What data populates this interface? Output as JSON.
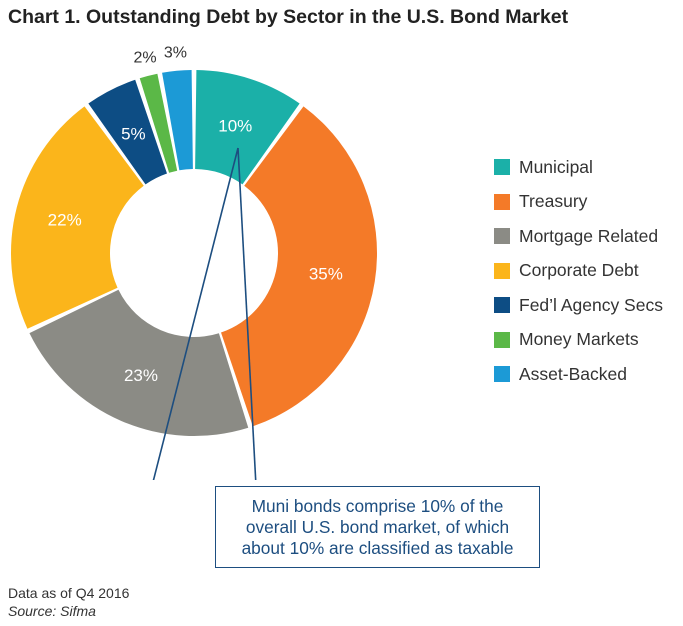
{
  "chart_data": {
    "type": "pie",
    "title": "Chart 1. Outstanding Debt by Sector in the U.S. Bond Market",
    "categories": [
      "Municipal",
      "Treasury",
      "Mortgage Related",
      "Corporate Debt",
      "Fed’l Agency Secs",
      "Money Markets",
      "Asset-Backed"
    ],
    "values": [
      10,
      35,
      23,
      22,
      5,
      2,
      3
    ],
    "data_labels": [
      "10%",
      "35%",
      "23%",
      "22%",
      "5%",
      "2%",
      "3%"
    ],
    "unit": "%",
    "chart_style": "donut",
    "legend_position": "right",
    "colors": [
      "#1bb0a8",
      "#f47a28",
      "#8b8b85",
      "#fbb51b",
      "#0d4d84",
      "#5bb847",
      "#1c9ad6"
    ]
  },
  "callout": {
    "line1": "Muni bonds comprise 10% of the",
    "line2": "overall U.S. bond market, of which",
    "line3": "about 10% are classified as taxable"
  },
  "footer": {
    "note": "Data as of Q4 2016",
    "source": "Source: Sifma"
  },
  "colors": {
    "callout_line": "#1d4e80"
  }
}
